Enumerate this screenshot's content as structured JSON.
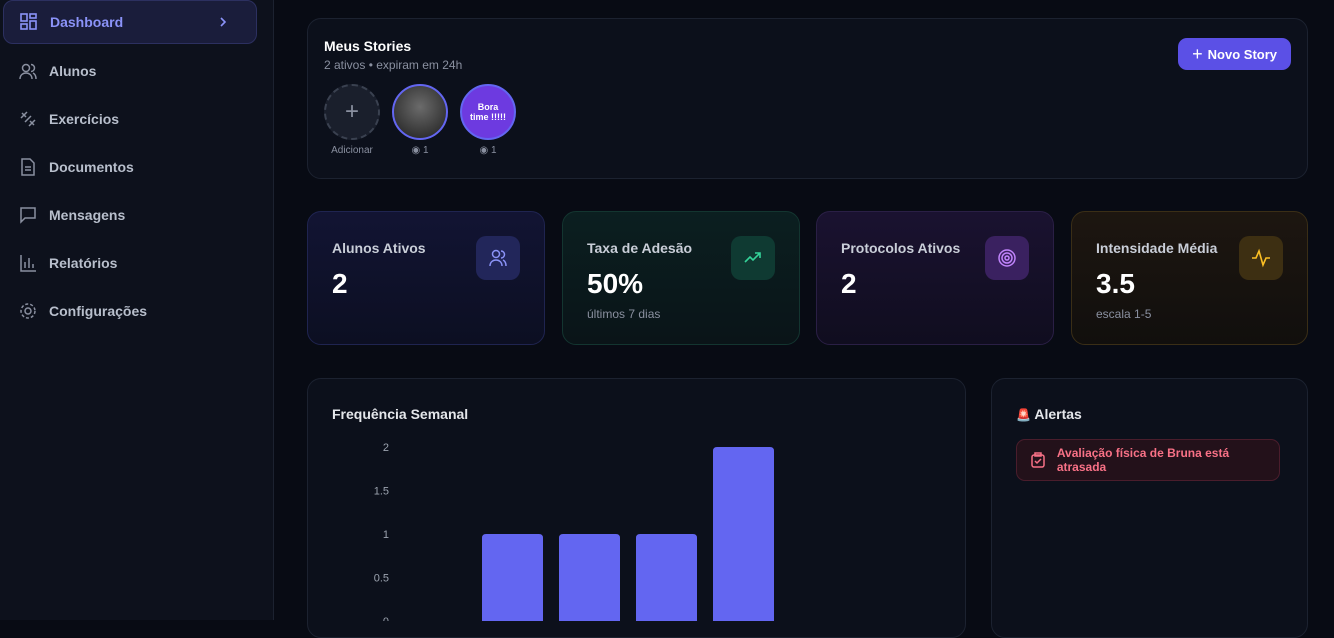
{
  "sidebar": {
    "items": [
      "Dashboard",
      "Alunos",
      "Exercícios",
      "Documentos",
      "Mensagens",
      "Relatórios",
      "Configurações"
    ]
  },
  "stories": {
    "title": "Meus Stories",
    "subtitle": "2 ativos • expiram em 24h",
    "button": "Novo Story",
    "add_label": "Adicionar",
    "items": [
      {
        "views": "1"
      },
      {
        "text": "Bora time !!!!!",
        "views": "1"
      }
    ]
  },
  "stats": [
    {
      "label": "Alunos Ativos",
      "value": "2"
    },
    {
      "label": "Taxa de Adesão",
      "value": "50%",
      "note": "últimos 7 dias"
    },
    {
      "label": "Protocolos Ativos",
      "value": "2"
    },
    {
      "label": "Intensidade Média",
      "value": "3.5",
      "note": "escala 1-5"
    }
  ],
  "alerts": {
    "title": "Alertas",
    "items": [
      "Avaliação física de Bruna está atrasada"
    ]
  },
  "chart_data": {
    "type": "bar",
    "title": "Frequência Semanal",
    "values": [
      0,
      1,
      1,
      1,
      2,
      0,
      0
    ],
    "color": "#6366f1",
    "ylim": [
      0,
      2
    ],
    "yticks": [
      0,
      0.5,
      1,
      1.5,
      2
    ]
  }
}
